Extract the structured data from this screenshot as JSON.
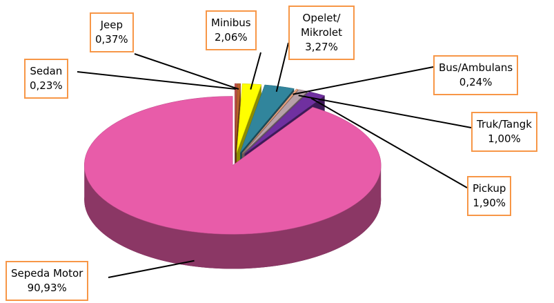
{
  "chart_data": {
    "type": "pie3d",
    "categories": [
      "Sedan",
      "Jeep",
      "Minibus",
      "Opelet/ Mikrolet",
      "Bus/Ambulans",
      "Truk/Tangk",
      "Pickup",
      "Sepeda Motor"
    ],
    "values": [
      0.23,
      0.37,
      2.06,
      3.27,
      0.24,
      1.0,
      1.9,
      90.93
    ],
    "value_labels": [
      "0,23%",
      "0,37%",
      "2,06%",
      "3,27%",
      "0,24%",
      "1,00%",
      "1,90%",
      "90,93%"
    ],
    "colors": [
      "#c0504d",
      "#b8602a",
      "#ffff00",
      "#31859c",
      "#e6a07e",
      "#b7a0a8",
      "#7030a0",
      "#e85ca9"
    ]
  }
}
